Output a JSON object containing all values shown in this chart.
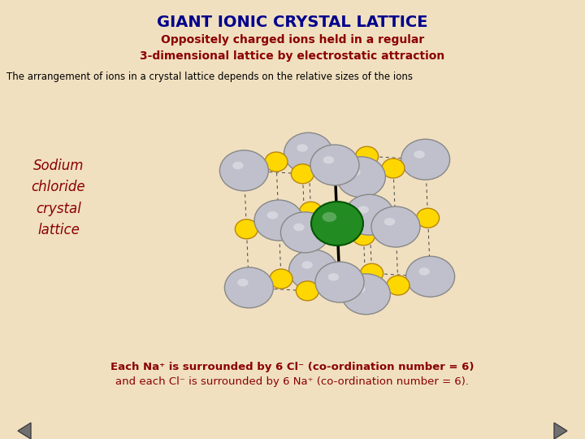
{
  "title": "GIANT IONIC CRYSTAL LATTICE",
  "subtitle": "Oppositely charged ions held in a regular\n3-dimensional lattice by electrostatic attraction",
  "subtitle2": "The arrangement of ions in a crystal lattice depends on the relative sizes of the ions",
  "label_text": "Sodium\nchloride\ncrystal\nlattice",
  "bottom_text1": "Each Na⁺ is surrounded by 6 Cl⁻ (co-ordination number = 6)",
  "bottom_text2": "and each Cl⁻ is surrounded by 6 Na⁺ (co-ordination number = 6).",
  "bg_color": "#f0e0c0",
  "title_color": "#00008B",
  "subtitle_color": "#8B0000",
  "subtitle2_color": "#000000",
  "label_color": "#8B0000",
  "bottom_color": "#8B0000",
  "cl_color": "#c0c0cc",
  "cl_edge": "#888888",
  "na_color": "#FFD700",
  "na_edge": "#B8860B",
  "center_color": "#228B22",
  "center_edge": "#005500",
  "line_color": "#444444",
  "bold_line_color": "#000000"
}
